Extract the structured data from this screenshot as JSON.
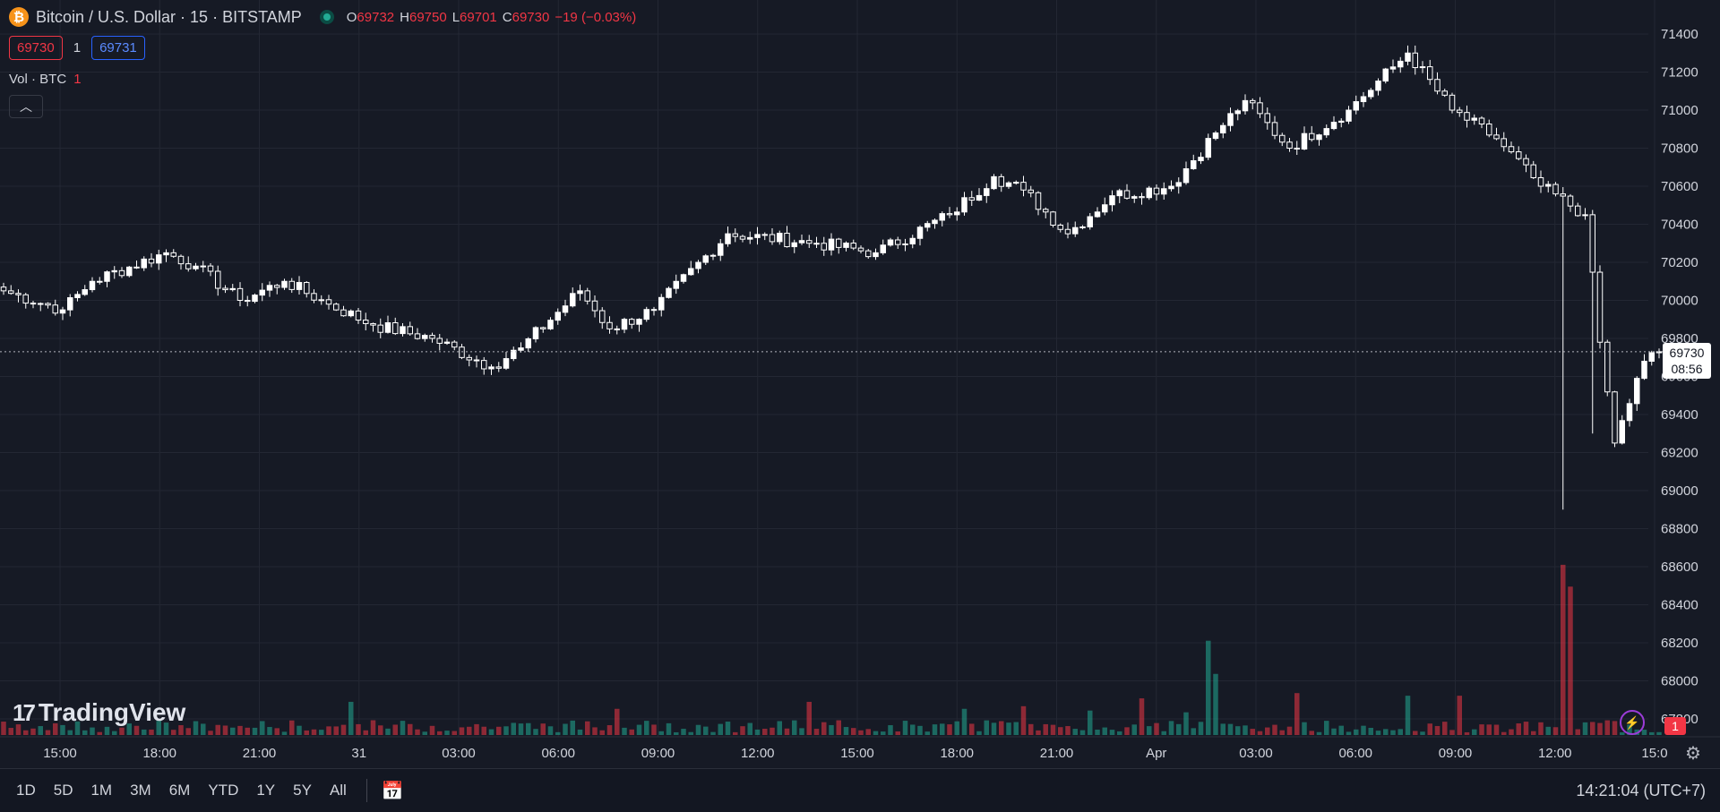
{
  "header": {
    "symbol_icon": "bitcoin-icon",
    "symbol_glyph": "₿",
    "title": "Bitcoin / U.S. Dollar · 15 · BITSTAMP",
    "ohlc": {
      "o_label": "O",
      "o_value": "69732",
      "h_label": "H",
      "h_value": "69750",
      "l_label": "L",
      "l_value": "69701",
      "c_label": "C",
      "c_value": "69730",
      "change": "−19 (−0.03%)"
    }
  },
  "trading": {
    "sell_price": "69730",
    "quantity": "1",
    "buy_price": "69731"
  },
  "volume_legend": {
    "label": "Vol · BTC",
    "count": "1"
  },
  "brand": {
    "mark": "17",
    "name": "TradingView"
  },
  "price_tag": {
    "price": "69730",
    "countdown": "08:56"
  },
  "alert_badge": "1",
  "bottom_bar": {
    "ranges": [
      "1D",
      "5D",
      "1M",
      "3M",
      "6M",
      "YTD",
      "1Y",
      "5Y",
      "All"
    ],
    "clock": "14:21:04 (UTC+7)"
  },
  "colors": {
    "background": "#161a25",
    "up_body": "#ffffff",
    "vol_up": "#22ab94",
    "vol_down": "#f23645",
    "grid": "#232733"
  },
  "chart_data": {
    "type": "candlestick",
    "title": "Bitcoin / U.S. Dollar · 15 · BITSTAMP",
    "xlabel": "",
    "ylabel": "",
    "ylim": [
      67700,
      71500
    ],
    "y_ticks": [
      71400,
      71200,
      71000,
      70800,
      70600,
      70400,
      70200,
      70000,
      69800,
      69600,
      69400,
      69200,
      69000,
      68800,
      68600,
      68400,
      68200,
      68000,
      67800
    ],
    "x_ticks": [
      "15:00",
      "18:00",
      "21:00",
      "31",
      "03:00",
      "06:00",
      "09:00",
      "12:00",
      "15:00",
      "18:00",
      "21:00",
      "Apr",
      "03:00",
      "06:00",
      "09:00",
      "12:00",
      "15:0"
    ],
    "last_price": 69730,
    "grid": true,
    "anchors": [
      [
        0,
        70050
      ],
      [
        8,
        69950
      ],
      [
        12,
        70100
      ],
      [
        22,
        70250
      ],
      [
        26,
        70180
      ],
      [
        32,
        70000
      ],
      [
        38,
        70100
      ],
      [
        44,
        69980
      ],
      [
        50,
        69870
      ],
      [
        58,
        69800
      ],
      [
        66,
        69650
      ],
      [
        70,
        69750
      ],
      [
        78,
        70050
      ],
      [
        82,
        69850
      ],
      [
        88,
        69950
      ],
      [
        98,
        70350
      ],
      [
        110,
        70300
      ],
      [
        118,
        70250
      ],
      [
        128,
        70450
      ],
      [
        134,
        70650
      ],
      [
        138,
        70580
      ],
      [
        144,
        70350
      ],
      [
        150,
        70550
      ],
      [
        158,
        70600
      ],
      [
        164,
        70880
      ],
      [
        168,
        71050
      ],
      [
        174,
        70800
      ],
      [
        182,
        71000
      ],
      [
        190,
        71300
      ],
      [
        196,
        71000
      ],
      [
        202,
        70850
      ],
      [
        208,
        70600
      ],
      [
        214,
        70450
      ],
      [
        216,
        69780
      ],
      [
        218,
        69250
      ],
      [
        222,
        69680
      ],
      [
        224,
        69730
      ]
    ],
    "volume_ylim": [
      0,
      200
    ],
    "volume_spikes": [
      [
        163,
        108
      ],
      [
        164,
        70
      ],
      [
        211,
        195
      ],
      [
        212,
        170
      ],
      [
        175,
        48
      ],
      [
        154,
        42
      ],
      [
        197,
        45
      ],
      [
        47,
        38
      ],
      [
        83,
        30
      ],
      [
        109,
        38
      ],
      [
        130,
        30
      ],
      [
        138,
        33
      ],
      [
        147,
        28
      ],
      [
        160,
        26
      ],
      [
        190,
        45
      ]
    ]
  }
}
